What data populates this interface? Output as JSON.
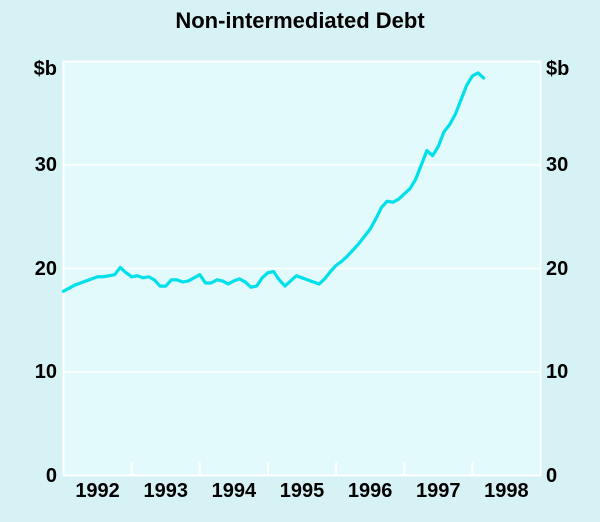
{
  "chart_data": {
    "type": "line",
    "title": "Non-intermediated Debt",
    "unit": "$b",
    "xlabel": "",
    "ylabel": "$b",
    "ylim": [
      0,
      40
    ],
    "y_ticks": [
      0,
      10,
      20,
      30
    ],
    "xlim": [
      1992,
      1999
    ],
    "x_year_labels": [
      "1992",
      "1993",
      "1994",
      "1995",
      "1996",
      "1997",
      "1998"
    ],
    "grid": "horizontal-white",
    "legend": "none",
    "series": [
      {
        "name": "Non-intermediated debt",
        "frequency": "monthly",
        "start": "1992-01",
        "end": "1998-03",
        "values": [
          17.8,
          18.1,
          18.4,
          18.6,
          18.8,
          19.0,
          19.2,
          19.2,
          19.3,
          19.4,
          20.1,
          19.6,
          19.2,
          19.3,
          19.1,
          19.2,
          18.9,
          18.3,
          18.3,
          18.9,
          18.9,
          18.7,
          18.8,
          19.1,
          19.4,
          18.6,
          18.6,
          18.9,
          18.8,
          18.5,
          18.8,
          19.0,
          18.7,
          18.2,
          18.3,
          19.1,
          19.6,
          19.7,
          18.9,
          18.3,
          18.8,
          19.3,
          19.1,
          18.9,
          18.7,
          18.5,
          19.0,
          19.7,
          20.3,
          20.7,
          21.2,
          21.8,
          22.4,
          23.1,
          23.8,
          24.8,
          25.9,
          26.5,
          26.4,
          26.7,
          27.2,
          27.7,
          28.6,
          30.0,
          31.4,
          30.9,
          31.8,
          33.2,
          33.9,
          34.9,
          36.3,
          37.7,
          38.6,
          38.9,
          38.4
        ]
      }
    ],
    "colors": {
      "line": "#00E0EA",
      "page_background": "#D7F2F5",
      "plot_background": "#E3FAFC",
      "grid": "#FFFFFF",
      "text": "#000000"
    }
  }
}
